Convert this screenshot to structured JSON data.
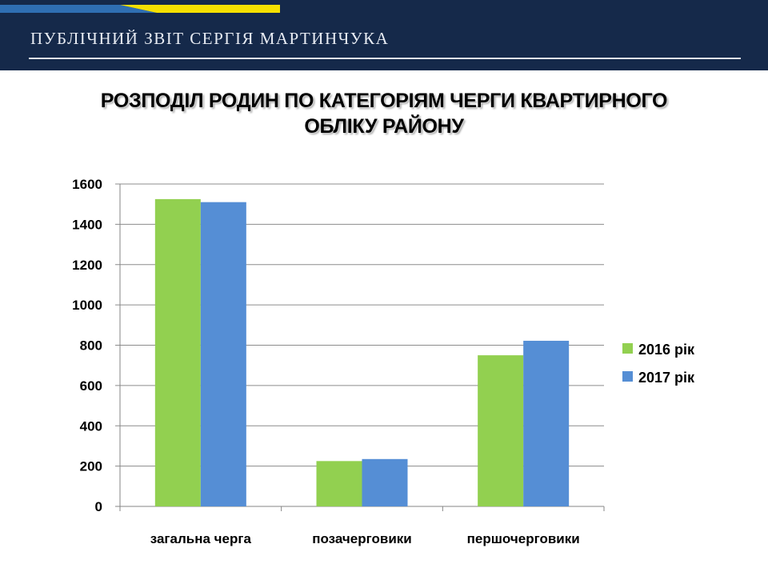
{
  "header": {
    "title": "ПУБЛІЧНИЙ ЗВІТ СЕРГІЯ МАРТИНЧУКА"
  },
  "colors": {
    "header_bg": "#15294a",
    "flag_blue": "#2f6fb3",
    "flag_yellow": "#f5e000",
    "series_2016": "#92d050",
    "series_2017": "#558ed5"
  },
  "chart_data": {
    "type": "bar",
    "title": "РОЗПОДІЛ РОДИН ПО КАТЕГОРІЯМ ЧЕРГИ КВАРТИРНОГО ОБЛІКУ РАЙОНУ",
    "title_lines": [
      "РОЗПОДІЛ РОДИН ПО КАТЕГОРІЯМ ЧЕРГИ КВАРТИРНОГО",
      "ОБЛІКУ РАЙОНУ"
    ],
    "categories": [
      "загальна черга",
      "позачерговики",
      "першочерговики"
    ],
    "series": [
      {
        "name": "2016 рік",
        "color": "#92d050",
        "values": [
          1525,
          225,
          750
        ]
      },
      {
        "name": "2017 рік",
        "color": "#558ed5",
        "values": [
          1510,
          235,
          822
        ]
      }
    ],
    "ylim": [
      0,
      1600
    ],
    "yticks": [
      "0",
      "200",
      "400",
      "600",
      "800",
      "1000",
      "1200",
      "1400",
      "1600"
    ],
    "grid": true,
    "legend_position": "right"
  }
}
